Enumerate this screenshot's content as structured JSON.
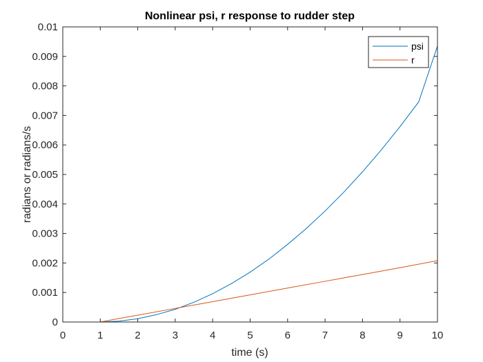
{
  "chart_data": {
    "type": "line",
    "title": "Nonlinear psi, r response to rudder step",
    "xlabel": "time (s)",
    "ylabel": "radians or radians/s",
    "xlim": [
      0,
      10
    ],
    "ylim": [
      0,
      0.01
    ],
    "x_ticks": [
      "0",
      "1",
      "2",
      "3",
      "4",
      "5",
      "6",
      "7",
      "8",
      "9",
      "10"
    ],
    "y_ticks": [
      "0",
      "0.001",
      "0.002",
      "0.003",
      "0.004",
      "0.005",
      "0.006",
      "0.007",
      "0.008",
      "0.009",
      "0.01"
    ],
    "grid": false,
    "legend_position": "top-right",
    "series": [
      {
        "name": "psi",
        "color": "#0072BD",
        "x": [
          0,
          1,
          1.5,
          2,
          2.5,
          3,
          3.5,
          4,
          4.5,
          5,
          5.5,
          6,
          6.5,
          7,
          7.5,
          8,
          8.5,
          9,
          9.5,
          10
        ],
        "y": [
          0,
          0,
          3e-05,
          0.00011,
          0.00025,
          0.00043,
          0.00067,
          0.00096,
          0.0013,
          0.00169,
          0.00213,
          0.00263,
          0.00317,
          0.00376,
          0.0044,
          0.00509,
          0.00583,
          0.00662,
          0.00746,
          0.00935
        ]
      },
      {
        "name": "r",
        "color": "#D95319",
        "x": [
          0,
          1,
          1.5,
          2,
          3,
          4,
          5,
          6,
          7,
          8,
          9,
          10
        ],
        "y": [
          0,
          0,
          0.00012,
          0.00023,
          0.00046,
          0.00069,
          0.00092,
          0.00115,
          0.00138,
          0.00161,
          0.00184,
          0.00208
        ]
      }
    ]
  }
}
